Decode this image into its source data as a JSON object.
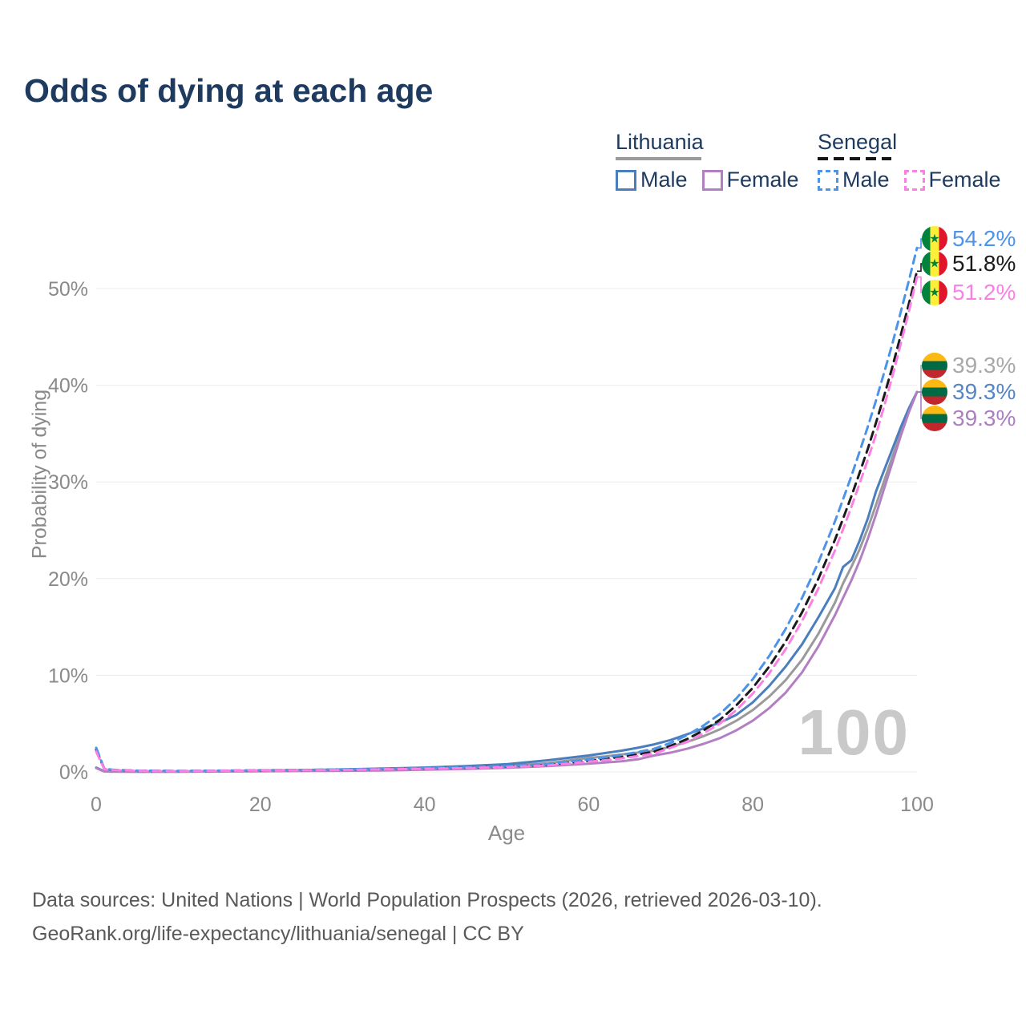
{
  "title": "Odds of dying at each age",
  "legend": {
    "groups": [
      {
        "label": "Lithuania",
        "line_style": "solid",
        "underline_color": "#9a9a9a",
        "items": [
          {
            "label": "Male",
            "color": "#4a7ebd"
          },
          {
            "label": "Female",
            "color": "#b27fc2"
          }
        ]
      },
      {
        "label": "Senegal",
        "line_style": "dashed",
        "underline_color": "#141414",
        "items": [
          {
            "label": "Male",
            "color": "#4d94e8"
          },
          {
            "label": "Female",
            "color": "#fb80e4"
          }
        ]
      }
    ]
  },
  "end_labels": [
    {
      "series": "senegal_male",
      "text": "54.2%",
      "color": "#4d94e8",
      "flag": "senegal-flag-icon"
    },
    {
      "series": "senegal_total",
      "text": "51.8%",
      "color": "#1a1a1a",
      "flag": "senegal-flag-icon"
    },
    {
      "series": "senegal_female",
      "text": "51.2%",
      "color": "#fb80e4",
      "flag": "senegal-flag-icon"
    },
    {
      "series": "lithuania_total",
      "text": "39.3%",
      "color": "#a8a8a8",
      "flag": "lithuania-flag-icon"
    },
    {
      "series": "lithuania_male",
      "text": "39.3%",
      "color": "#5585c5",
      "flag": "lithuania-flag-icon"
    },
    {
      "series": "lithuania_female",
      "text": "39.3%",
      "color": "#ab7fc0",
      "flag": "lithuania-flag-icon"
    }
  ],
  "watermark": {
    "text": "100"
  },
  "footer": {
    "line1": "Data sources: United Nations | World Population Prospects (2026, retrieved 2026-03-10).",
    "line2": "GeoRank.org/life-expectancy/lithuania/senegal | CC BY"
  },
  "chart_data": {
    "type": "line",
    "title": "Odds of dying at each age",
    "xlabel": "Age",
    "ylabel": "Probability of dying",
    "xticks": [
      0,
      20,
      40,
      60,
      80,
      100
    ],
    "yticks": [
      0,
      10,
      20,
      30,
      40,
      50
    ],
    "xlim": [
      0,
      100
    ],
    "ylim": [
      0,
      56
    ],
    "grid": "horizontal-only",
    "legend_position": "top-right",
    "ages": [
      0,
      1,
      2,
      5,
      10,
      15,
      20,
      25,
      30,
      35,
      40,
      45,
      50,
      55,
      60,
      62,
      64,
      66,
      68,
      70,
      72,
      74,
      76,
      78,
      80,
      82,
      84,
      86,
      88,
      90,
      91,
      92,
      93,
      94,
      95,
      96,
      97,
      98,
      99,
      100
    ],
    "series": [
      {
        "name": "lithuania_total",
        "country": "Lithuania",
        "group": "Total",
        "color": "#9a9a9a",
        "dashed": false,
        "values": [
          0.42,
          0.05,
          0.035,
          0.03,
          0.03,
          0.06,
          0.1,
          0.13,
          0.17,
          0.24,
          0.33,
          0.45,
          0.62,
          0.9,
          1.45,
          1.6,
          1.8,
          2.0,
          2.2,
          2.6,
          3.1,
          3.7,
          4.4,
          5.3,
          6.4,
          7.8,
          9.5,
          11.6,
          14.3,
          17.5,
          19.5,
          21.2,
          23.0,
          25.2,
          27.6,
          30.1,
          32.6,
          35.0,
          37.3,
          39.3
        ]
      },
      {
        "name": "lithuania_male",
        "country": "Lithuania",
        "group": "Male",
        "color": "#4a7ebd",
        "dashed": false,
        "values": [
          0.45,
          0.055,
          0.04,
          0.035,
          0.035,
          0.08,
          0.14,
          0.19,
          0.26,
          0.35,
          0.45,
          0.6,
          0.8,
          1.2,
          1.7,
          1.95,
          2.2,
          2.5,
          2.85,
          3.3,
          3.9,
          4.5,
          5.1,
          5.9,
          7.2,
          8.9,
          10.9,
          13.2,
          16.0,
          19.0,
          21.2,
          21.9,
          23.9,
          26.2,
          29.0,
          31.2,
          33.4,
          35.6,
          37.6,
          39.3
        ]
      },
      {
        "name": "lithuania_female",
        "country": "Lithuania",
        "group": "Female",
        "color": "#b27fc2",
        "dashed": false,
        "values": [
          0.4,
          0.045,
          0.03,
          0.025,
          0.025,
          0.04,
          0.06,
          0.09,
          0.12,
          0.16,
          0.22,
          0.3,
          0.42,
          0.6,
          0.85,
          0.97,
          1.1,
          1.3,
          1.7,
          2.0,
          2.4,
          2.9,
          3.5,
          4.3,
          5.3,
          6.6,
          8.2,
          10.3,
          13.0,
          16.2,
          18.0,
          19.8,
          21.8,
          24.1,
          26.6,
          29.3,
          32.0,
          34.7,
          37.2,
          39.3
        ]
      },
      {
        "name": "senegal_total",
        "country": "Senegal",
        "group": "Total",
        "color": "#1a1a1a",
        "dashed": true,
        "values": [
          2.3,
          0.3,
          0.2,
          0.12,
          0.09,
          0.12,
          0.15,
          0.19,
          0.23,
          0.29,
          0.35,
          0.44,
          0.55,
          0.73,
          1.15,
          1.35,
          1.55,
          1.8,
          2.1,
          2.7,
          3.4,
          4.3,
          5.4,
          6.9,
          8.7,
          10.9,
          13.5,
          16.5,
          20.0,
          24.0,
          26.2,
          28.5,
          30.9,
          33.4,
          36.1,
          38.9,
          41.9,
          45.1,
          48.4,
          51.8
        ]
      },
      {
        "name": "senegal_male",
        "country": "Senegal",
        "group": "Male",
        "color": "#4d94e8",
        "dashed": true,
        "values": [
          2.5,
          0.32,
          0.22,
          0.13,
          0.1,
          0.13,
          0.17,
          0.21,
          0.26,
          0.32,
          0.38,
          0.48,
          0.6,
          0.8,
          1.3,
          1.5,
          1.75,
          2.05,
          2.4,
          3.0,
          3.8,
          4.8,
          6.0,
          7.6,
          9.6,
          12.0,
          14.8,
          18.0,
          21.7,
          25.9,
          28.2,
          30.6,
          33.1,
          35.7,
          38.4,
          41.3,
          44.3,
          47.5,
          50.8,
          54.2
        ]
      },
      {
        "name": "senegal_female",
        "country": "Senegal",
        "group": "Female",
        "color": "#fb80e4",
        "dashed": true,
        "values": [
          2.1,
          0.28,
          0.19,
          0.11,
          0.085,
          0.11,
          0.14,
          0.17,
          0.21,
          0.27,
          0.32,
          0.4,
          0.5,
          0.66,
          1.05,
          1.2,
          1.4,
          1.63,
          1.9,
          2.5,
          3.1,
          4.0,
          5.0,
          6.4,
          8.1,
          10.2,
          12.7,
          15.6,
          19.0,
          22.9,
          25.1,
          27.4,
          29.8,
          32.3,
          34.9,
          37.8,
          40.9,
          44.2,
          47.6,
          51.2
        ]
      }
    ]
  }
}
